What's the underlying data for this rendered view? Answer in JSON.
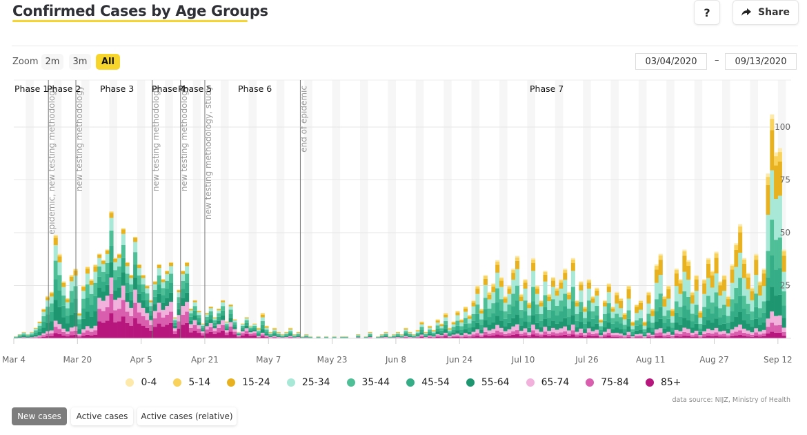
{
  "header": {
    "title": "Confirmed Cases by Age Groups",
    "help_label": "?",
    "share_label": "Share",
    "share_icon": "share-arrow-icon"
  },
  "zoom": {
    "label": "Zoom",
    "options": [
      "2m",
      "3m",
      "All"
    ],
    "selected": "All"
  },
  "date_range": {
    "from": "03/04/2020",
    "separator": "–",
    "to": "09/13/2020"
  },
  "modes": {
    "options": [
      "New cases",
      "Active cases",
      "Active cases (relative)"
    ],
    "selected": "New cases"
  },
  "source_text": "data source: NIJZ, Ministry of Health",
  "chart_data": {
    "type": "bar",
    "stacked": true,
    "title": "Confirmed Cases by Age Groups",
    "start_date": "2020-03-04",
    "end_date": "2020-09-13",
    "x_tick_labels": [
      "Mar 4",
      "Mar 20",
      "Apr 5",
      "Apr 21",
      "May 7",
      "May 23",
      "Jun 8",
      "Jun 24",
      "Jul 10",
      "Jul 26",
      "Aug 11",
      "Aug 27",
      "Sep 12"
    ],
    "x_tick_day_offsets": [
      0,
      16,
      32,
      48,
      64,
      80,
      96,
      112,
      128,
      144,
      160,
      176,
      192
    ],
    "y_ticks": [
      25,
      50,
      75,
      100
    ],
    "ylim": [
      0,
      125
    ],
    "grid": true,
    "legend_position": "bottom",
    "series": [
      {
        "name": "0-4",
        "color": "#fde9a9"
      },
      {
        "name": "5-14",
        "color": "#f8d25a"
      },
      {
        "name": "15-24",
        "color": "#e7b11f"
      },
      {
        "name": "25-34",
        "color": "#a8e8d6"
      },
      {
        "name": "35-44",
        "color": "#4fbf98"
      },
      {
        "name": "45-54",
        "color": "#35ad86"
      },
      {
        "name": "55-64",
        "color": "#1e9670"
      },
      {
        "name": "65-74",
        "color": "#f1b1dc"
      },
      {
        "name": "75-84",
        "color": "#d95fae"
      },
      {
        "name": "85+",
        "color": "#b7167d"
      }
    ],
    "phases": [
      {
        "label": "Phase 1",
        "day": 0
      },
      {
        "label": "Phase 2",
        "day": 8
      },
      {
        "label": "Phase 3",
        "day": 16
      },
      {
        "label": "Phase 4",
        "day": 35
      },
      {
        "label": "Phase 5",
        "day": 42
      },
      {
        "label": "Phase 6",
        "day": 48
      },
      {
        "label": "Phase 7",
        "day": 72
      }
    ],
    "annotations": [
      {
        "text": "epidemic, new testing methodology",
        "day": 8.7
      },
      {
        "text": "new testing methodology",
        "day": 15.6
      },
      {
        "text": "new testing methodology",
        "day": 34.8
      },
      {
        "text": "new testing methodology",
        "day": 41.9
      },
      {
        "text": "new testing methodology, study",
        "day": 48
      },
      {
        "text": "end of epidemic",
        "day": 72
      }
    ],
    "daily_totals": [
      1,
      2,
      3,
      2,
      3,
      5,
      8,
      14,
      20,
      22,
      49,
      40,
      27,
      19,
      30,
      33,
      12,
      25,
      34,
      28,
      35,
      40,
      37,
      42,
      60,
      38,
      40,
      52,
      36,
      30,
      48,
      35,
      30,
      25,
      18,
      27,
      35,
      28,
      32,
      36,
      10,
      23,
      32,
      36,
      14,
      18,
      13,
      7,
      12,
      15,
      10,
      14,
      18,
      8,
      16,
      9,
      3,
      7,
      10,
      6,
      7,
      5,
      12,
      6,
      3,
      5,
      3,
      2,
      3,
      5,
      2,
      3,
      1,
      2,
      1,
      0,
      1,
      0,
      1,
      0,
      1,
      0,
      1,
      1,
      0,
      0,
      2,
      0,
      1,
      3,
      0,
      1,
      2,
      3,
      1,
      2,
      3,
      2,
      5,
      3,
      2,
      4,
      8,
      3,
      6,
      4,
      9,
      7,
      12,
      5,
      8,
      13,
      9,
      15,
      11,
      18,
      25,
      14,
      30,
      22,
      26,
      37,
      29,
      20,
      25,
      33,
      39,
      21,
      28,
      17,
      38,
      25,
      18,
      32,
      21,
      29,
      24,
      28,
      33,
      22,
      38,
      18,
      27,
      15,
      28,
      20,
      24,
      9,
      18,
      26,
      15,
      22,
      19,
      12,
      25,
      8,
      16,
      18,
      8,
      22,
      14,
      35,
      40,
      20,
      25,
      14,
      33,
      28,
      42,
      37,
      22,
      30,
      13,
      28,
      38,
      32,
      41,
      27,
      30,
      20,
      35,
      45,
      54,
      38,
      31,
      24,
      40,
      27,
      33,
      78,
      106,
      88,
      90,
      42
    ],
    "profiles": [
      {
        "from_day": 0,
        "to_day": 20,
        "shares": [
          0.01,
          0.02,
          0.07,
          0.15,
          0.18,
          0.2,
          0.2,
          0.06,
          0.06,
          0.05
        ]
      },
      {
        "from_day": 21,
        "to_day": 60,
        "shares": [
          0.0,
          0.01,
          0.04,
          0.1,
          0.12,
          0.13,
          0.12,
          0.13,
          0.15,
          0.2
        ]
      },
      {
        "from_day": 61,
        "to_day": 110,
        "shares": [
          0.02,
          0.05,
          0.1,
          0.15,
          0.16,
          0.16,
          0.14,
          0.07,
          0.07,
          0.08
        ]
      },
      {
        "from_day": 111,
        "to_day": 150,
        "shares": [
          0.02,
          0.04,
          0.1,
          0.2,
          0.18,
          0.17,
          0.12,
          0.07,
          0.05,
          0.05
        ]
      },
      {
        "from_day": 151,
        "to_day": 193,
        "shares": [
          0.02,
          0.05,
          0.18,
          0.22,
          0.16,
          0.14,
          0.11,
          0.05,
          0.04,
          0.03
        ]
      }
    ]
  }
}
